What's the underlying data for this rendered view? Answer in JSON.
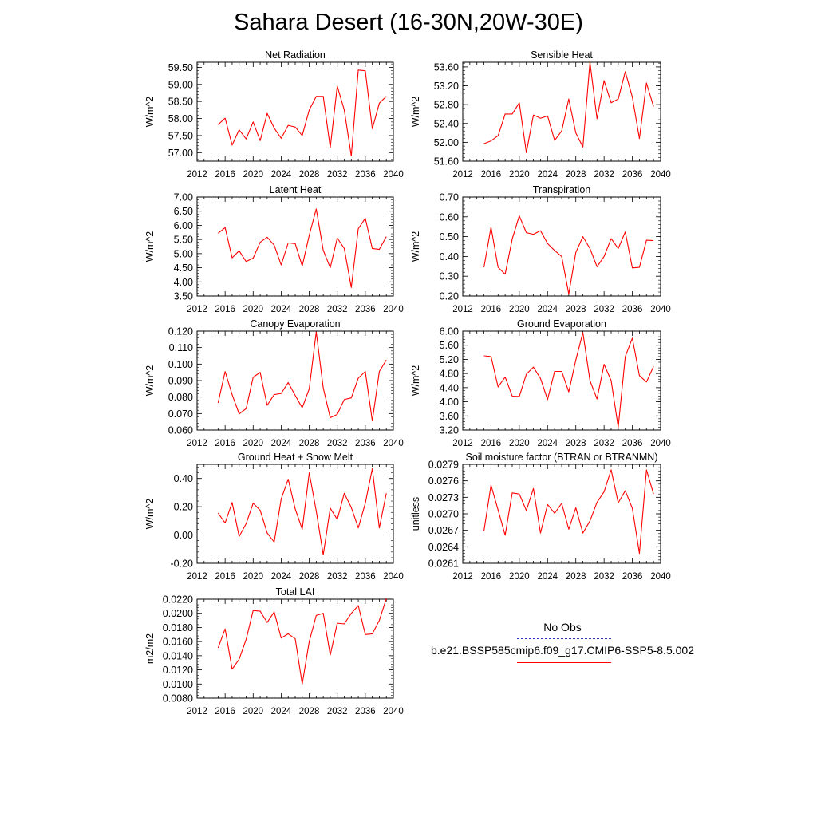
{
  "title": "Sahara Desert (16-30N,20W-30E)",
  "legend": {
    "obs_label": "No Obs",
    "case_label": "b.e21.BSSP585cmip6.f09_g17.CMIP6-SSP5-8.5.002",
    "obs_color": "#3030c0",
    "case_color": "#ff0000"
  },
  "chart_data": [
    {
      "type": "line",
      "title": "Net Radiation",
      "ylabel": "W/m^2",
      "xlim": [
        2012,
        2040
      ],
      "xticks": [
        2012,
        2016,
        2020,
        2024,
        2028,
        2032,
        2036,
        2040
      ],
      "ylim": [
        56.75,
        59.65
      ],
      "yticks": [
        57.0,
        57.5,
        58.0,
        58.5,
        59.0,
        59.5
      ],
      "ydecimals": 2,
      "series": [
        {
          "color": "#ff0000",
          "x": [
            2015,
            2016,
            2017,
            2018,
            2019,
            2020,
            2021,
            2022,
            2023,
            2024,
            2025,
            2026,
            2027,
            2028,
            2029,
            2030,
            2031,
            2032,
            2033,
            2034,
            2035,
            2036,
            2037,
            2038,
            2039
          ],
          "y": [
            57.82,
            58.01,
            57.22,
            57.67,
            57.4,
            57.9,
            57.35,
            58.15,
            57.72,
            57.42,
            57.8,
            57.75,
            57.5,
            58.25,
            58.65,
            58.65,
            57.15,
            58.95,
            58.25,
            56.9,
            59.42,
            59.4,
            57.7,
            58.45,
            58.65
          ]
        }
      ]
    },
    {
      "type": "line",
      "title": "Sensible Heat",
      "ylabel": "W/m^2",
      "xlim": [
        2012,
        2040
      ],
      "xticks": [
        2012,
        2016,
        2020,
        2024,
        2028,
        2032,
        2036,
        2040
      ],
      "ylim": [
        51.6,
        53.7
      ],
      "yticks": [
        51.6,
        52.0,
        52.4,
        52.8,
        53.2,
        53.6
      ],
      "ydecimals": 2,
      "series": [
        {
          "color": "#ff0000",
          "x": [
            2015,
            2016,
            2017,
            2018,
            2019,
            2020,
            2021,
            2022,
            2023,
            2024,
            2025,
            2026,
            2027,
            2028,
            2029,
            2030,
            2031,
            2032,
            2033,
            2034,
            2035,
            2036,
            2037,
            2038,
            2039
          ],
          "y": [
            51.97,
            52.03,
            52.14,
            52.6,
            52.6,
            52.84,
            51.78,
            52.58,
            52.51,
            52.56,
            52.04,
            52.24,
            52.92,
            52.2,
            51.9,
            53.7,
            52.5,
            53.31,
            52.84,
            52.92,
            53.5,
            52.96,
            52.08,
            53.26,
            52.76
          ]
        }
      ]
    },
    {
      "type": "line",
      "title": "Latent Heat",
      "ylabel": "W/m^2",
      "xlim": [
        2012,
        2040
      ],
      "xticks": [
        2012,
        2016,
        2020,
        2024,
        2028,
        2032,
        2036,
        2040
      ],
      "ylim": [
        3.5,
        7.0
      ],
      "yticks": [
        3.5,
        4.0,
        4.5,
        5.0,
        5.5,
        6.0,
        6.5,
        7.0
      ],
      "ydecimals": 2,
      "series": [
        {
          "color": "#ff0000",
          "x": [
            2015,
            2016,
            2017,
            2018,
            2019,
            2020,
            2021,
            2022,
            2023,
            2024,
            2025,
            2026,
            2027,
            2028,
            2029,
            2030,
            2031,
            2032,
            2033,
            2034,
            2035,
            2036,
            2037,
            2038,
            2039
          ],
          "y": [
            5.72,
            5.92,
            4.85,
            5.1,
            4.72,
            4.84,
            5.4,
            5.58,
            5.3,
            4.6,
            5.38,
            5.35,
            4.56,
            5.65,
            6.58,
            5.12,
            4.5,
            5.55,
            5.18,
            3.8,
            5.88,
            6.25,
            5.18,
            5.15,
            5.6
          ]
        }
      ]
    },
    {
      "type": "line",
      "title": "Transpiration",
      "ylabel": "W/m^2",
      "xlim": [
        2012,
        2040
      ],
      "xticks": [
        2012,
        2016,
        2020,
        2024,
        2028,
        2032,
        2036,
        2040
      ],
      "ylim": [
        0.2,
        0.7
      ],
      "yticks": [
        0.2,
        0.3,
        0.4,
        0.5,
        0.6,
        0.7
      ],
      "ydecimals": 2,
      "series": [
        {
          "color": "#ff0000",
          "x": [
            2015,
            2016,
            2017,
            2018,
            2019,
            2020,
            2021,
            2022,
            2023,
            2024,
            2025,
            2026,
            2027,
            2028,
            2029,
            2030,
            2031,
            2032,
            2033,
            2034,
            2035,
            2036,
            2037,
            2038,
            2039
          ],
          "y": [
            0.345,
            0.548,
            0.345,
            0.31,
            0.488,
            0.605,
            0.52,
            0.512,
            0.53,
            0.465,
            0.43,
            0.4,
            0.21,
            0.42,
            0.5,
            0.44,
            0.348,
            0.4,
            0.49,
            0.44,
            0.524,
            0.342,
            0.345,
            0.482,
            0.48
          ]
        }
      ]
    },
    {
      "type": "line",
      "title": "Canopy Evaporation",
      "ylabel": "W/m^2",
      "xlim": [
        2012,
        2040
      ],
      "xticks": [
        2012,
        2016,
        2020,
        2024,
        2028,
        2032,
        2036,
        2040
      ],
      "ylim": [
        0.06,
        0.12
      ],
      "yticks": [
        0.06,
        0.07,
        0.08,
        0.09,
        0.1,
        0.11,
        0.12
      ],
      "ydecimals": 3,
      "series": [
        {
          "color": "#ff0000",
          "x": [
            2015,
            2016,
            2017,
            2018,
            2019,
            2020,
            2021,
            2022,
            2023,
            2024,
            2025,
            2026,
            2027,
            2028,
            2029,
            2030,
            2031,
            2032,
            2033,
            2034,
            2035,
            2036,
            2037,
            2038,
            2039
          ],
          "y": [
            0.0765,
            0.0955,
            0.0815,
            0.0698,
            0.073,
            0.092,
            0.095,
            0.075,
            0.0815,
            0.0822,
            0.0888,
            0.081,
            0.0735,
            0.085,
            0.1195,
            0.0855,
            0.0675,
            0.0695,
            0.0785,
            0.0795,
            0.0915,
            0.0955,
            0.0655,
            0.0955,
            0.1025
          ]
        }
      ]
    },
    {
      "type": "line",
      "title": "Ground Evaporation",
      "ylabel": "W/m^2",
      "xlim": [
        2012,
        2040
      ],
      "xticks": [
        2012,
        2016,
        2020,
        2024,
        2028,
        2032,
        2036,
        2040
      ],
      "ylim": [
        3.2,
        6.0
      ],
      "yticks": [
        3.2,
        3.6,
        4.0,
        4.4,
        4.8,
        5.2,
        5.6,
        6.0
      ],
      "ydecimals": 2,
      "series": [
        {
          "color": "#ff0000",
          "x": [
            2015,
            2016,
            2017,
            2018,
            2019,
            2020,
            2021,
            2022,
            2023,
            2024,
            2025,
            2026,
            2027,
            2028,
            2029,
            2030,
            2031,
            2032,
            2033,
            2034,
            2035,
            2036,
            2037,
            2038,
            2039
          ],
          "y": [
            5.3,
            5.28,
            4.42,
            4.7,
            4.16,
            4.15,
            4.78,
            4.98,
            4.66,
            4.06,
            4.86,
            4.86,
            4.28,
            5.18,
            5.96,
            4.6,
            4.08,
            5.06,
            4.6,
            3.28,
            5.28,
            5.8,
            4.74,
            4.56,
            5.0
          ]
        }
      ]
    },
    {
      "type": "line",
      "title": "Ground Heat + Snow Melt",
      "ylabel": "W/m^2",
      "xlim": [
        2012,
        2040
      ],
      "xticks": [
        2012,
        2016,
        2020,
        2024,
        2028,
        2032,
        2036,
        2040
      ],
      "ylim": [
        -0.2,
        0.5
      ],
      "yticks": [
        -0.2,
        0.0,
        0.2,
        0.4
      ],
      "ydecimals": 2,
      "series": [
        {
          "color": "#ff0000",
          "x": [
            2015,
            2016,
            2017,
            2018,
            2019,
            2020,
            2021,
            2022,
            2023,
            2024,
            2025,
            2026,
            2027,
            2028,
            2029,
            2030,
            2031,
            2032,
            2033,
            2034,
            2035,
            2036,
            2037,
            2038,
            2039
          ],
          "y": [
            0.155,
            0.085,
            0.23,
            -0.01,
            0.08,
            0.225,
            0.175,
            0.015,
            -0.05,
            0.255,
            0.395,
            0.185,
            0.04,
            0.44,
            0.17,
            -0.14,
            0.19,
            0.11,
            0.295,
            0.195,
            0.05,
            0.225,
            0.47,
            0.05,
            0.295
          ]
        }
      ]
    },
    {
      "type": "line",
      "title": "Soil moisture factor (BTRAN or BTRANMN)",
      "ylabel": "unitless",
      "xlim": [
        2012,
        2040
      ],
      "xticks": [
        2012,
        2016,
        2020,
        2024,
        2028,
        2032,
        2036,
        2040
      ],
      "ylim": [
        0.0261,
        0.0279
      ],
      "yticks": [
        0.0261,
        0.0264,
        0.0267,
        0.027,
        0.0273,
        0.0276,
        0.0279
      ],
      "ydecimals": 4,
      "series": [
        {
          "color": "#ff0000",
          "x": [
            2015,
            2016,
            2017,
            2018,
            2019,
            2020,
            2021,
            2022,
            2023,
            2024,
            2025,
            2026,
            2027,
            2028,
            2029,
            2030,
            2031,
            2032,
            2033,
            2034,
            2035,
            2036,
            2037,
            2038,
            2039
          ],
          "y": [
            0.02669,
            0.02752,
            0.02707,
            0.02661,
            0.02738,
            0.02736,
            0.02706,
            0.02746,
            0.02665,
            0.02717,
            0.02701,
            0.02719,
            0.02672,
            0.02711,
            0.02665,
            0.02687,
            0.02721,
            0.0274,
            0.0278,
            0.0272,
            0.02742,
            0.0271,
            0.02628,
            0.0278,
            0.02736
          ]
        }
      ]
    },
    {
      "type": "line",
      "title": "Total LAI",
      "ylabel": "m2/m2",
      "xlim": [
        2012,
        2040
      ],
      "xticks": [
        2012,
        2016,
        2020,
        2024,
        2028,
        2032,
        2036,
        2040
      ],
      "ylim": [
        0.008,
        0.022
      ],
      "yticks": [
        0.008,
        0.01,
        0.012,
        0.014,
        0.016,
        0.018,
        0.02,
        0.022
      ],
      "ydecimals": 4,
      "series": [
        {
          "color": "#ff0000",
          "x": [
            2015,
            2016,
            2017,
            2018,
            2019,
            2020,
            2021,
            2022,
            2023,
            2024,
            2025,
            2026,
            2027,
            2028,
            2029,
            2030,
            2031,
            2032,
            2033,
            2034,
            2035,
            2036,
            2037,
            2038,
            2039
          ],
          "y": [
            0.0151,
            0.0178,
            0.0121,
            0.0135,
            0.0163,
            0.0204,
            0.0203,
            0.0187,
            0.0202,
            0.0165,
            0.0171,
            0.0164,
            0.01,
            0.016,
            0.0197,
            0.02,
            0.0141,
            0.0186,
            0.0185,
            0.02,
            0.0211,
            0.017,
            0.0171,
            0.019,
            0.0221
          ]
        }
      ]
    }
  ]
}
